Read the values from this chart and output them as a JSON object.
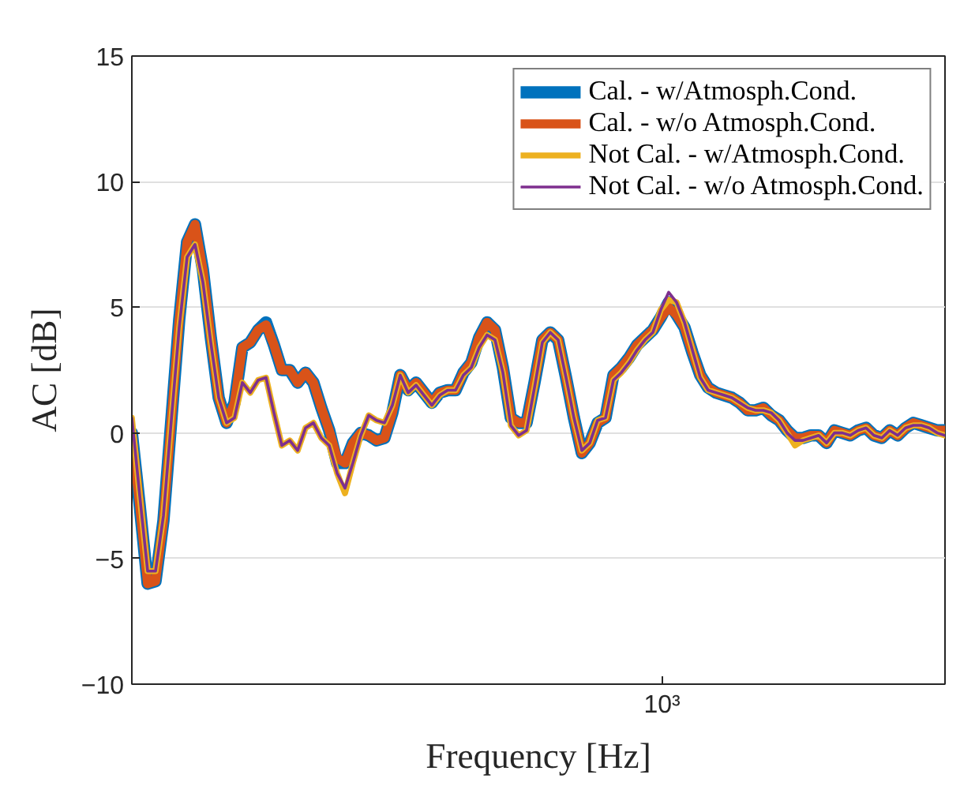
{
  "chart_data": {
    "type": "line",
    "xlabel": "Frequency [Hz]",
    "ylabel": "AC [dB]",
    "grid": "y",
    "legend": "top right",
    "line_style": "solid",
    "marker": "none",
    "ylim": [
      -10,
      15
    ],
    "yticks": [
      -10,
      -5,
      0,
      5,
      10,
      15
    ],
    "annotations": [
      "10³"
    ],
    "categories": [
      null,
      null,
      null,
      null,
      null,
      null,
      null,
      null,
      null,
      null,
      null,
      null,
      null,
      null,
      null,
      null,
      null,
      null,
      null,
      null,
      null,
      null,
      null,
      null,
      null,
      null,
      null,
      null,
      null,
      null,
      null,
      null,
      null,
      null,
      null,
      null,
      null,
      null,
      null,
      null,
      null,
      null,
      null,
      null,
      null,
      null,
      null,
      null,
      null,
      null,
      null,
      null,
      null,
      null,
      null,
      null,
      null,
      null,
      null,
      null,
      null,
      null,
      null,
      null,
      null,
      null,
      null,
      null,
      null,
      null,
      null,
      null,
      null,
      null,
      null,
      null,
      null,
      null,
      null,
      null,
      null,
      null,
      null,
      null,
      null,
      null,
      null,
      null,
      null,
      null,
      null,
      null,
      null,
      null,
      null,
      null,
      null,
      null,
      null,
      null,
      null,
      null,
      null,
      null
    ],
    "series": [
      {
        "name": "Cal. - w/Atmosph.Cond.",
        "color": "#0072bd",
        "values": [
          0.0,
          -2.9,
          -6.0,
          -5.9,
          -3.5,
          0.5,
          4.5,
          7.6,
          8.3,
          6.5,
          3.8,
          1.4,
          0.4,
          1.2,
          3.4,
          3.6,
          4.1,
          4.4,
          3.5,
          2.5,
          2.5,
          2.0,
          2.4,
          2.0,
          1.0,
          0.1,
          -1.2,
          -1.2,
          -0.4,
          0,
          -0.1,
          -0.3,
          -0.2,
          0.8,
          2.3,
          1.7,
          2.0,
          1.6,
          1.2,
          1.6,
          1.7,
          1.7,
          2.4,
          2.8,
          3.8,
          4.4,
          4.1,
          2.6,
          0.6,
          0.4,
          0.4,
          2.0,
          3.7,
          4.0,
          3.7,
          2.2,
          0.6,
          -0.8,
          -0.4,
          0.4,
          0.6,
          2.3,
          2.6,
          3.0,
          3.5,
          3.8,
          4.1,
          4.6,
          5.2,
          4.7,
          4.2,
          3.2,
          2.3,
          1.8,
          1.6,
          1.5,
          1.4,
          1.2,
          0.9,
          0.9,
          1.0,
          0.7,
          0.5,
          0.1,
          -0.2,
          -0.2,
          -0.1,
          -0.1,
          -0.4,
          0.1,
          0.0,
          -0.1,
          0.1,
          0.2,
          -0.1,
          -0.2,
          0.1,
          -0.1,
          0.2,
          0.4,
          0.3,
          0.2,
          0.1,
          0.1
        ]
      },
      {
        "name": "Cal. - w/o Atmosph.Cond.",
        "color": "#d95319",
        "values": [
          0.0,
          -2.9,
          -6.0,
          -5.9,
          -3.5,
          0.5,
          4.5,
          7.6,
          8.3,
          6.5,
          3.8,
          1.4,
          0.4,
          1.2,
          3.4,
          3.6,
          4.1,
          4.3,
          3.5,
          2.5,
          2.5,
          2.0,
          2.4,
          2.0,
          1.0,
          0.1,
          -1.0,
          -1.2,
          -0.4,
          0,
          -0.1,
          -0.3,
          -0.2,
          0.8,
          2.3,
          1.7,
          2.0,
          1.6,
          1.2,
          1.6,
          1.7,
          1.7,
          2.4,
          2.8,
          3.8,
          4.4,
          4.1,
          2.6,
          0.6,
          0.4,
          0.4,
          2.0,
          3.7,
          4.0,
          3.7,
          2.2,
          0.6,
          -0.8,
          -0.4,
          0.4,
          0.6,
          2.3,
          2.6,
          3.0,
          3.5,
          3.8,
          4.1,
          4.6,
          5.0,
          4.7,
          4.2,
          3.2,
          2.3,
          1.8,
          1.6,
          1.5,
          1.4,
          1.2,
          0.9,
          0.9,
          1.0,
          0.7,
          0.5,
          0.1,
          -0.2,
          -0.2,
          -0.1,
          -0.1,
          -0.4,
          0.1,
          0.0,
          -0.1,
          0.1,
          0.2,
          -0.1,
          -0.2,
          0.1,
          -0.1,
          0.2,
          0.4,
          0.3,
          0.2,
          0.1,
          0.1
        ]
      },
      {
        "name": "Not Cal. - w/Atmosph.Cond.",
        "color": "#edb120",
        "values": [
          0.6,
          -2.5,
          -5.5,
          -5.5,
          -3.3,
          0.5,
          4.2,
          7.0,
          7.5,
          6.0,
          3.6,
          1.4,
          0.4,
          0.6,
          2.0,
          1.6,
          2.1,
          2.2,
          0.8,
          -0.5,
          -0.3,
          -0.7,
          0.2,
          0.4,
          -0.2,
          -0.5,
          -1.6,
          -2.4,
          -1.2,
          -0.1,
          0.7,
          0.5,
          0.4,
          1.1,
          2.3,
          1.6,
          1.9,
          1.5,
          1.1,
          1.5,
          1.7,
          1.7,
          2.3,
          2.6,
          3.4,
          3.9,
          3.7,
          2.4,
          0.3,
          -0.1,
          0.1,
          1.8,
          3.6,
          4.0,
          3.7,
          2.2,
          0.6,
          -0.7,
          -0.4,
          0.5,
          0.6,
          2.1,
          2.4,
          2.8,
          3.3,
          3.7,
          4.0,
          4.9,
          5.3,
          5.2,
          4.4,
          3.3,
          2.2,
          1.7,
          1.6,
          1.5,
          1.4,
          1.2,
          1.0,
          0.9,
          0.9,
          0.8,
          0.5,
          0.0,
          -0.5,
          -0.3,
          -0.2,
          -0.1,
          -0.4,
          0.0,
          0.0,
          -0.1,
          0.1,
          0.2,
          -0.1,
          -0.2,
          0.1,
          -0.1,
          0.2,
          0.3,
          0.3,
          0.2,
          0.0,
          -0.1
        ]
      },
      {
        "name": "Not Cal. - w/o Atmosph.Cond.",
        "color": "#7e2f8e",
        "values": [
          0.6,
          -2.5,
          -5.5,
          -5.5,
          -3.3,
          0.5,
          4.2,
          7.0,
          7.5,
          6.0,
          3.6,
          1.4,
          0.4,
          0.6,
          2.0,
          1.6,
          2.1,
          2.2,
          0.8,
          -0.5,
          -0.3,
          -0.7,
          0.2,
          0.4,
          -0.2,
          -0.5,
          -1.6,
          -2.2,
          -1.2,
          -0.1,
          0.7,
          0.5,
          0.4,
          1.1,
          2.3,
          1.6,
          1.9,
          1.5,
          1.1,
          1.5,
          1.7,
          1.7,
          2.3,
          2.6,
          3.4,
          3.9,
          3.7,
          2.4,
          0.3,
          -0.1,
          0.1,
          1.8,
          3.6,
          4.0,
          3.7,
          2.2,
          0.6,
          -0.7,
          -0.4,
          0.5,
          0.6,
          2.1,
          2.4,
          2.8,
          3.3,
          3.7,
          4.0,
          4.9,
          5.6,
          5.2,
          4.4,
          3.3,
          2.2,
          1.7,
          1.6,
          1.5,
          1.4,
          1.2,
          1.0,
          0.9,
          0.9,
          0.8,
          0.5,
          0.0,
          -0.3,
          -0.3,
          -0.2,
          -0.1,
          -0.4,
          0.0,
          0.0,
          -0.1,
          0.1,
          0.2,
          -0.1,
          -0.2,
          0.1,
          -0.1,
          0.2,
          0.3,
          0.3,
          0.2,
          0.0,
          -0.1
        ]
      }
    ]
  }
}
